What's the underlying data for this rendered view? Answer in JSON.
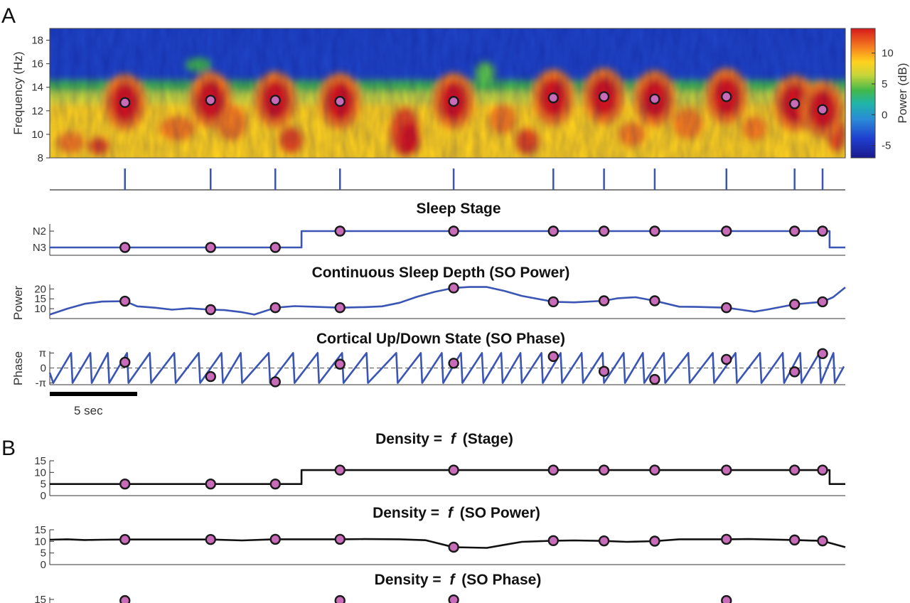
{
  "panel_labels": {
    "a": "A",
    "b": "B"
  },
  "colors": {
    "trace": "#3a55b4",
    "density": "#111111",
    "marker_fill": "#c86bb8",
    "marker_edge": "#1a1a1a"
  },
  "scale_bar": {
    "label": "5 sec",
    "seconds": 5
  },
  "chart_data": [
    {
      "id": "spectrogram",
      "type": "heatmap",
      "title": "",
      "xlabel": "",
      "ylabel": "Frequency (Hz)",
      "yticks": [
        "8",
        "10",
        "12",
        "14",
        "16",
        "18"
      ],
      "ylim": [
        8,
        19
      ],
      "colorbar": {
        "label": "Power (dB)",
        "ticks": [
          "-5",
          "0",
          "5",
          "10"
        ],
        "range": [
          -7,
          14
        ],
        "colormap": "jet"
      },
      "duration_s": 45.5,
      "events": [
        {
          "t": 4.3,
          "freq": 12.7
        },
        {
          "t": 9.2,
          "freq": 12.9
        },
        {
          "t": 12.9,
          "freq": 12.9
        },
        {
          "t": 16.6,
          "freq": 12.8
        },
        {
          "t": 23.1,
          "freq": 12.8
        },
        {
          "t": 28.8,
          "freq": 13.1
        },
        {
          "t": 31.7,
          "freq": 13.2
        },
        {
          "t": 34.6,
          "freq": 13.0
        },
        {
          "t": 38.7,
          "freq": 13.2
        },
        {
          "t": 42.6,
          "freq": 12.6
        },
        {
          "t": 44.2,
          "freq": 12.1
        }
      ]
    },
    {
      "id": "sleep-stage",
      "type": "line",
      "title": "Sleep Stage",
      "yticks": [
        "N2",
        "N3"
      ],
      "series": [
        {
          "x": [
            0,
            14.4,
            14.4,
            44.6,
            44.6,
            45.5
          ],
          "y": [
            0,
            0,
            1,
            1,
            0,
            0
          ]
        }
      ],
      "events": [
        {
          "t": 4.3,
          "y": 0
        },
        {
          "t": 9.2,
          "y": 0
        },
        {
          "t": 12.9,
          "y": 0
        },
        {
          "t": 16.6,
          "y": 1
        },
        {
          "t": 23.1,
          "y": 1
        },
        {
          "t": 28.8,
          "y": 1
        },
        {
          "t": 31.7,
          "y": 1
        },
        {
          "t": 34.6,
          "y": 1
        },
        {
          "t": 38.7,
          "y": 1
        },
        {
          "t": 42.6,
          "y": 1
        },
        {
          "t": 44.2,
          "y": 1
        }
      ]
    },
    {
      "id": "so-power",
      "type": "line",
      "title": "Continuous Sleep Depth (SO Power)",
      "ylabel": "Power",
      "yticks": [
        "10",
        "15",
        "20"
      ],
      "ylim": [
        5,
        23
      ],
      "series": [
        {
          "x": [
            0,
            1,
            2,
            3,
            4.3,
            5,
            6,
            7,
            8,
            9.2,
            10,
            11,
            11.7,
            12.9,
            14,
            15,
            16.6,
            18,
            19,
            20,
            21,
            22,
            23.1,
            24,
            25,
            26,
            27,
            28.8,
            30,
            31.7,
            32.5,
            33.5,
            34.6,
            36,
            37,
            38.7,
            39.5,
            40.3,
            41,
            42.6,
            44.2,
            44.8,
            45.5
          ],
          "y": [
            7,
            10,
            12.5,
            13.6,
            13.8,
            11.2,
            10.5,
            9.5,
            10.2,
            9.5,
            9.3,
            8.2,
            7,
            10.5,
            11.3,
            11,
            10.5,
            10.8,
            11.2,
            13,
            16,
            18.5,
            20.5,
            21,
            21,
            19,
            16.5,
            13.5,
            13.2,
            14,
            15.3,
            15.8,
            14,
            11,
            10.9,
            10.5,
            9.5,
            8.5,
            9.5,
            12.2,
            13.5,
            15.8,
            20.8
          ]
        }
      ],
      "events": [
        {
          "t": 4.3,
          "y": 13.8
        },
        {
          "t": 9.2,
          "y": 9.5
        },
        {
          "t": 12.9,
          "y": 10.5
        },
        {
          "t": 16.6,
          "y": 10.5
        },
        {
          "t": 23.1,
          "y": 20.5
        },
        {
          "t": 28.8,
          "y": 13.5
        },
        {
          "t": 31.7,
          "y": 14
        },
        {
          "t": 34.6,
          "y": 14
        },
        {
          "t": 38.7,
          "y": 10.5
        },
        {
          "t": 42.6,
          "y": 12.2
        },
        {
          "t": 44.2,
          "y": 13.5
        }
      ]
    },
    {
      "id": "so-phase",
      "type": "line",
      "title": "Cortical Up/Down State (SO Phase)",
      "ylabel": "Phase",
      "yticks": [
        "-π",
        "0",
        "π"
      ],
      "ylim": [
        -3.5,
        3.5
      ],
      "series": [
        {
          "cycle_starts": [
            0.2,
            1.3,
            2.4,
            3.4,
            4.5,
            5.8,
            7.2,
            8.6,
            9.9,
            11.0,
            12.6,
            14.0,
            15.4,
            16.8,
            18.2,
            19.9,
            21.3,
            22.5,
            23.6,
            24.8,
            25.9,
            27.0,
            28.2,
            29.3,
            30.5,
            31.7,
            32.9,
            34.0,
            35.2,
            36.6,
            38.0,
            39.3,
            40.7,
            42.0,
            43.0,
            44.1,
            44.9
          ],
          "unit": "s"
        }
      ],
      "events": [
        {
          "t": 4.3,
          "y": 1.2
        },
        {
          "t": 9.2,
          "y": -1.8
        },
        {
          "t": 12.9,
          "y": -2.9
        },
        {
          "t": 16.6,
          "y": 0.8
        },
        {
          "t": 23.1,
          "y": 1.0
        },
        {
          "t": 28.8,
          "y": 2.4
        },
        {
          "t": 31.7,
          "y": -0.7
        },
        {
          "t": 34.6,
          "y": -2.4
        },
        {
          "t": 38.7,
          "y": 1.8
        },
        {
          "t": 42.6,
          "y": -0.8
        },
        {
          "t": 44.2,
          "y": 3.0
        }
      ]
    },
    {
      "id": "density-stage",
      "type": "line",
      "title": "Density =  f (Stage)",
      "title_parts": [
        "Density = ",
        "f",
        " (Stage)"
      ],
      "yticks": [
        "0",
        "5",
        "10",
        "15"
      ],
      "ylim": [
        0,
        15
      ],
      "series": [
        {
          "x": [
            0,
            14.4,
            14.4,
            44.6,
            44.6,
            45.5
          ],
          "y": [
            5,
            5,
            11,
            11,
            5,
            5
          ]
        }
      ],
      "events": [
        {
          "t": 4.3,
          "y": 5
        },
        {
          "t": 9.2,
          "y": 5
        },
        {
          "t": 12.9,
          "y": 5
        },
        {
          "t": 16.6,
          "y": 11
        },
        {
          "t": 23.1,
          "y": 11
        },
        {
          "t": 28.8,
          "y": 11
        },
        {
          "t": 31.7,
          "y": 11
        },
        {
          "t": 34.6,
          "y": 11
        },
        {
          "t": 38.7,
          "y": 11
        },
        {
          "t": 42.6,
          "y": 11
        },
        {
          "t": 44.2,
          "y": 11
        }
      ]
    },
    {
      "id": "density-power",
      "type": "line",
      "title": "Density =  f (SO Power)",
      "title_parts": [
        "Density = ",
        "f",
        " (SO Power)"
      ],
      "yticks": [
        "0",
        "5",
        "10",
        "15"
      ],
      "ylim": [
        0,
        15
      ],
      "series": [
        {
          "x": [
            0,
            1,
            2,
            3,
            4.3,
            6,
            8,
            9.2,
            11,
            12.9,
            15,
            16.6,
            18,
            20,
            21.5,
            23.1,
            25,
            26,
            27,
            28.8,
            30,
            31.7,
            33,
            34.6,
            36,
            38.7,
            40,
            42.6,
            44.2,
            45.5
          ],
          "y": [
            10.7,
            10.9,
            10.6,
            10.7,
            10.8,
            10.8,
            10.8,
            10.8,
            10.4,
            10.9,
            10.9,
            10.9,
            11,
            10.9,
            10.5,
            7.5,
            7.2,
            8.5,
            9.8,
            10.3,
            10.4,
            10.2,
            9.8,
            10.1,
            10.9,
            10.9,
            11,
            10.6,
            10.2,
            7.5
          ]
        }
      ],
      "events": [
        {
          "t": 4.3,
          "y": 10.8
        },
        {
          "t": 9.2,
          "y": 10.8
        },
        {
          "t": 12.9,
          "y": 10.9
        },
        {
          "t": 16.6,
          "y": 10.9
        },
        {
          "t": 23.1,
          "y": 7.5
        },
        {
          "t": 28.8,
          "y": 10.3
        },
        {
          "t": 31.7,
          "y": 10.2
        },
        {
          "t": 34.6,
          "y": 10.1
        },
        {
          "t": 38.7,
          "y": 10.9
        },
        {
          "t": 42.6,
          "y": 10.6
        },
        {
          "t": 44.2,
          "y": 10.2
        }
      ]
    },
    {
      "id": "density-phase",
      "type": "line",
      "title": "Density =  f (SO Phase)",
      "title_parts": [
        "Density = ",
        "f",
        " (SO Phase)"
      ],
      "yticks": [
        "15"
      ],
      "ylim": [
        0,
        15
      ],
      "events": [
        {
          "t": 4.3,
          "y": 14.5
        },
        {
          "t": 16.6,
          "y": 14.5
        },
        {
          "t": 23.1,
          "y": 14.8
        },
        {
          "t": 38.7,
          "y": 14.5
        }
      ]
    }
  ]
}
